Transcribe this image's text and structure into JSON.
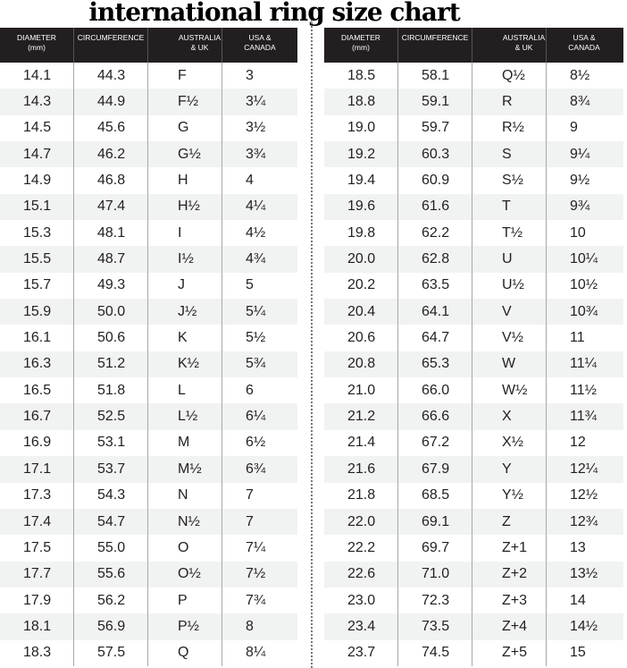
{
  "title": "international ring size chart",
  "headers": [
    "DIAMETER\n(mm)",
    "CIRCUMFERENCE",
    "AUSTRALIA\n& UK",
    "USA &\nCANADA"
  ],
  "left_rows": [
    [
      "14.1",
      "44.3",
      "F",
      "3"
    ],
    [
      "14.3",
      "44.9",
      "F½",
      "3¼"
    ],
    [
      "14.5",
      "45.6",
      "G",
      "3½"
    ],
    [
      "14.7",
      "46.2",
      "G½",
      "3¾"
    ],
    [
      "14.9",
      "46.8",
      "H",
      "4"
    ],
    [
      "15.1",
      "47.4",
      "H½",
      "4¼"
    ],
    [
      "15.3",
      "48.1",
      "I",
      "4½"
    ],
    [
      "15.5",
      "48.7",
      "I½",
      "4¾"
    ],
    [
      "15.7",
      "49.3",
      "J",
      "5"
    ],
    [
      "15.9",
      "50.0",
      "J½",
      "5¼"
    ],
    [
      "16.1",
      "50.6",
      "K",
      "5½"
    ],
    [
      "16.3",
      "51.2",
      "K½",
      "5¾"
    ],
    [
      "16.5",
      "51.8",
      "L",
      "6"
    ],
    [
      "16.7",
      "52.5",
      "L½",
      "6¼"
    ],
    [
      "16.9",
      "53.1",
      "M",
      "6½"
    ],
    [
      "17.1",
      "53.7",
      "M½",
      "6¾"
    ],
    [
      "17.3",
      "54.3",
      "N",
      "7"
    ],
    [
      "17.4",
      "54.7",
      "N½",
      "7"
    ],
    [
      "17.5",
      "55.0",
      "O",
      "7¼"
    ],
    [
      "17.7",
      "55.6",
      "O½",
      "7½"
    ],
    [
      "17.9",
      "56.2",
      "P",
      "7¾"
    ],
    [
      "18.1",
      "56.9",
      "P½",
      "8"
    ],
    [
      "18.3",
      "57.5",
      "Q",
      "8¼"
    ]
  ],
  "right_rows": [
    [
      "18.5",
      "58.1",
      "Q½",
      "8½"
    ],
    [
      "18.8",
      "59.1",
      "R",
      "8¾"
    ],
    [
      "19.0",
      "59.7",
      "R½",
      "9"
    ],
    [
      "19.2",
      "60.3",
      "S",
      "9¼"
    ],
    [
      "19.4",
      "60.9",
      "S½",
      "9½"
    ],
    [
      "19.6",
      "61.6",
      "T",
      "9¾"
    ],
    [
      "19.8",
      "62.2",
      "T½",
      "10"
    ],
    [
      "20.0",
      "62.8",
      "U",
      "10¼"
    ],
    [
      "20.2",
      "63.5",
      "U½",
      "10½"
    ],
    [
      "20.4",
      "64.1",
      "V",
      "10¾"
    ],
    [
      "20.6",
      "64.7",
      "V½",
      "11"
    ],
    [
      "20.8",
      "65.3",
      "W",
      "11¼"
    ],
    [
      "21.0",
      "66.0",
      "W½",
      "11½"
    ],
    [
      "21.2",
      "66.6",
      "X",
      "11¾"
    ],
    [
      "21.4",
      "67.2",
      "X½",
      "12"
    ],
    [
      "21.6",
      "67.9",
      "Y",
      "12¼"
    ],
    [
      "21.8",
      "68.5",
      "Y½",
      "12½"
    ],
    [
      "22.0",
      "69.1",
      "Z",
      "12¾"
    ],
    [
      "22.2",
      "69.7",
      "Z+1",
      "13"
    ],
    [
      "22.6",
      "71.0",
      "Z+2",
      "13½"
    ],
    [
      "23.0",
      "72.3",
      "Z+3",
      "14"
    ],
    [
      "23.4",
      "73.5",
      "Z+4",
      "14½"
    ],
    [
      "23.7",
      "74.5",
      "Z+5",
      "15"
    ]
  ],
  "colors": {
    "header_bg": "#231f20",
    "stripe": "#f1f2f2",
    "text": "#231f20"
  }
}
